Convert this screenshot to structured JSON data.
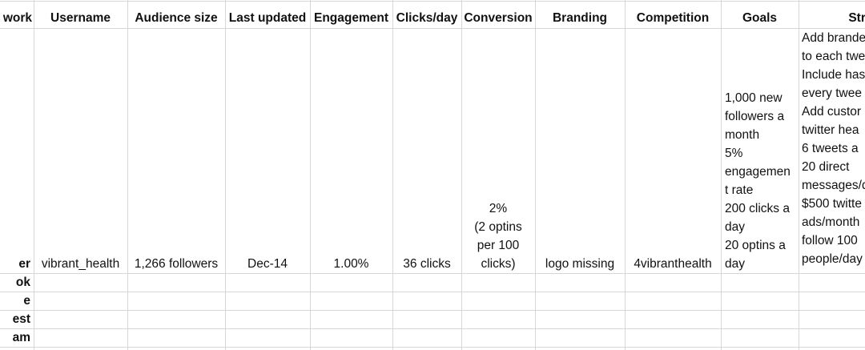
{
  "headers": {
    "network": "work",
    "username": "Username",
    "audience": "Audience size",
    "updated": "Last updated",
    "engagement": "Engagement",
    "clicks": "Clicks/day",
    "conversion": "Conversion",
    "branding": "Branding",
    "competition": "Competition",
    "goals": "Goals",
    "strategy": "Strat"
  },
  "row_main": {
    "network": "er",
    "username": "vibrant_health",
    "audience": "1,266 followers",
    "updated": "Dec-14",
    "engagement": "1.00%",
    "clicks": "36 clicks",
    "conversion": "2%\n(2 optins\nper 100\nclicks)",
    "branding": "logo missing",
    "competition": "4vibranthealth",
    "goals": "1,000 new\nfollowers a\nmonth\n5%\nengagemen\nt rate\n200 clicks a\nday\n20 optins a\nday",
    "strategy": "Add brande\nto each twe\nInclude has\nevery twee\nAdd custor\ntwitter hea\n6 tweets a \n20 direct\nmessages/d\n$500 twitte\nads/month\nfollow 100 \npeople/day"
  },
  "rows_network": [
    "ok",
    "e",
    "est",
    "am"
  ]
}
